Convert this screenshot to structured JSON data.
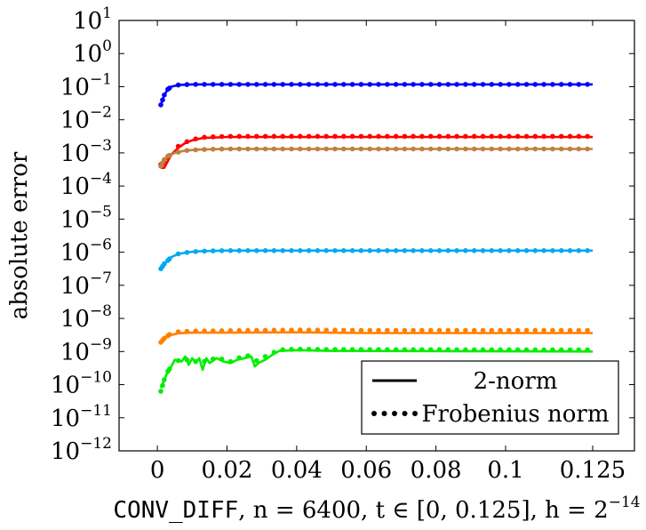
{
  "chart_data": {
    "type": "line",
    "xlabel": {
      "prefix": "CONV_DIFF",
      "rest": ", n = 6400, t ∈ [0, 0.125], h = 2",
      "exponent": "−14"
    },
    "ylabel": "absolute error",
    "yscale": "log",
    "xlim": [
      -0.011,
      0.137
    ],
    "ylim_exp": [
      -12,
      1
    ],
    "x_ticks": [
      0,
      0.02,
      0.04,
      0.06,
      0.08,
      0.1,
      0.125
    ],
    "x_tick_labels": [
      "0",
      "0.02",
      "0.04",
      "0.06",
      "0.08",
      "0.1",
      "0.125"
    ],
    "y_tick_exps": [
      1,
      0,
      -1,
      -2,
      -3,
      -4,
      -5,
      -6,
      -7,
      -8,
      -9,
      -10,
      -11,
      -12
    ],
    "y_tick_labels": [
      "1",
      "0",
      "−1",
      "−2",
      "−3",
      "−4",
      "−5",
      "−6",
      "−7",
      "−8",
      "−9",
      "−10",
      "−11",
      "−12"
    ],
    "y_tick_base": "10",
    "legend": {
      "position": "bottom-right",
      "entries": [
        {
          "style": "solid",
          "label": "2-norm"
        },
        {
          "style": "dotted",
          "label": "Frobenius norm"
        }
      ]
    },
    "series": [
      {
        "name": "blue",
        "color": "#0000ff",
        "t": [
          0.001,
          0.002,
          0.003,
          0.004,
          0.006,
          0.01,
          0.125
        ],
        "exp2": [
          -1.55,
          -1.25,
          -1.08,
          -1.0,
          -0.95,
          -0.93,
          -0.93
        ],
        "expF": [
          -1.55,
          -1.25,
          -1.08,
          -1.0,
          -0.95,
          -0.93,
          -0.93
        ]
      },
      {
        "name": "red",
        "color": "#ff0000",
        "t": [
          0.001,
          0.002,
          0.004,
          0.006,
          0.008,
          0.01,
          0.013,
          0.02,
          0.125
        ],
        "exp2": [
          -3.45,
          -3.45,
          -3.05,
          -2.85,
          -2.7,
          -2.62,
          -2.55,
          -2.52,
          -2.52
        ],
        "expF": [
          -3.35,
          -3.3,
          -3.0,
          -2.8,
          -2.68,
          -2.6,
          -2.53,
          -2.5,
          -2.5
        ]
      },
      {
        "name": "brown",
        "color": "#bf8040",
        "t": [
          0.001,
          0.002,
          0.003,
          0.005,
          0.008,
          0.012,
          0.02,
          0.125
        ],
        "exp2": [
          -3.35,
          -3.25,
          -3.1,
          -3.0,
          -2.93,
          -2.9,
          -2.88,
          -2.88
        ],
        "expF": [
          -3.4,
          -3.2,
          -3.1,
          -3.0,
          -2.93,
          -2.9,
          -2.88,
          -2.88
        ]
      },
      {
        "name": "cyan",
        "color": "#00aaee",
        "t": [
          0.001,
          0.002,
          0.003,
          0.004,
          0.006,
          0.009,
          0.012,
          0.02,
          0.125
        ],
        "exp2": [
          -6.5,
          -6.35,
          -6.25,
          -6.15,
          -6.05,
          -6.0,
          -5.97,
          -5.95,
          -5.95
        ],
        "expF": [
          -6.5,
          -6.35,
          -6.25,
          -6.15,
          -6.05,
          -6.0,
          -5.97,
          -5.95,
          -5.95
        ]
      },
      {
        "name": "orange",
        "color": "#ff8000",
        "t": [
          0.001,
          0.002,
          0.004,
          0.006,
          0.01,
          0.02,
          0.04,
          0.06,
          0.125
        ],
        "exp2": [
          -8.72,
          -8.6,
          -8.5,
          -8.45,
          -8.43,
          -8.43,
          -8.42,
          -8.44,
          -8.44
        ],
        "expF": [
          -8.72,
          -8.6,
          -8.45,
          -8.4,
          -8.38,
          -8.37,
          -8.35,
          -8.36,
          -8.36
        ]
      },
      {
        "name": "green",
        "color": "#00ee00",
        "t": [
          0.001,
          0.002,
          0.003,
          0.004,
          0.005,
          0.007,
          0.008,
          0.009,
          0.01,
          0.011,
          0.012,
          0.013,
          0.014,
          0.015,
          0.017,
          0.019,
          0.021,
          0.023,
          0.025,
          0.027,
          0.028,
          0.029,
          0.031,
          0.033,
          0.035,
          0.04,
          0.05,
          0.125
        ],
        "exp2": [
          -10.1,
          -9.85,
          -9.6,
          -9.45,
          -9.25,
          -9.3,
          -9.15,
          -9.4,
          -9.2,
          -9.35,
          -9.2,
          -9.55,
          -9.2,
          -9.35,
          -9.2,
          -9.3,
          -9.35,
          -9.25,
          -9.2,
          -9.15,
          -9.45,
          -9.35,
          -9.25,
          -9.1,
          -8.98,
          -8.96,
          -8.98,
          -9.0
        ],
        "expF": [
          -10.2,
          -9.85,
          -9.6,
          -9.45,
          -9.3,
          -9.25,
          -9.2,
          -9.3,
          -9.2,
          -9.3,
          -9.2,
          -9.4,
          -9.2,
          -9.3,
          -9.15,
          -9.25,
          -9.3,
          -9.2,
          -9.15,
          -9.1,
          -9.3,
          -9.25,
          -9.15,
          -9.05,
          -8.95,
          -8.93,
          -8.94,
          -8.95
        ]
      }
    ]
  }
}
